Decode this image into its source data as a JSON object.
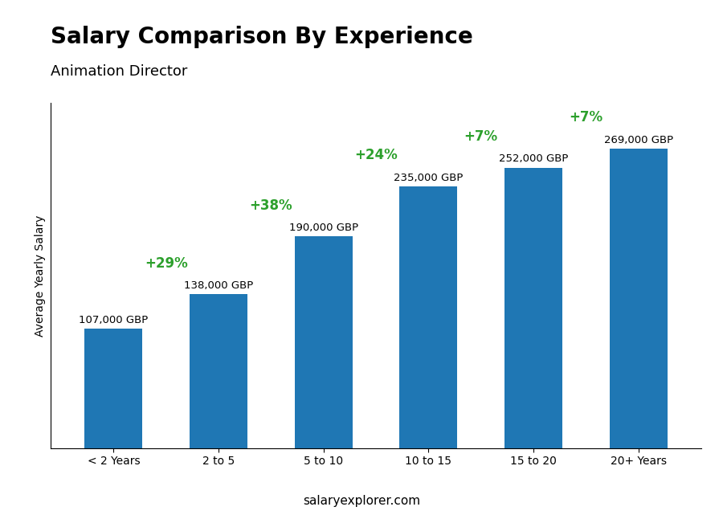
{
  "chart_data": {
    "type": "bar",
    "title": "Salary Comparison By Experience",
    "subtitle": "Animation Director",
    "ylabel": "Average Yearly Salary",
    "categories": [
      "< 2 Years",
      "2 to 5",
      "5 to 10",
      "10 to 15",
      "15 to 20",
      "20+ Years"
    ],
    "values": [
      107000,
      138000,
      190000,
      235000,
      252000,
      269000
    ],
    "value_labels": [
      "107,000 GBP",
      "138,000 GBP",
      "190,000 GBP",
      "235,000 GBP",
      "252,000 GBP",
      "269,000 GBP"
    ],
    "data_labels": true,
    "annotations": [
      "+29%",
      "+38%",
      "+24%",
      "+7%",
      "+7%"
    ],
    "source": "salaryexplorer.com",
    "ylim": [
      0,
      310000
    ],
    "yticks": [],
    "tick_labels": "x",
    "grid": false
  }
}
